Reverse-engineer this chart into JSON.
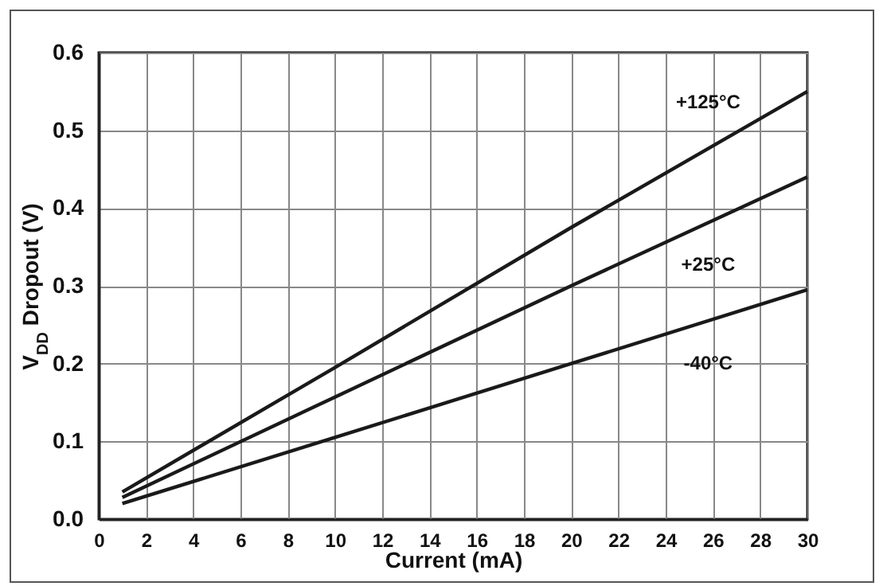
{
  "chart_data": {
    "type": "line",
    "xlabel": "Current (mA)",
    "ylabel": "V$_{DD}$ Dropout (V)",
    "xlim": [
      0,
      30
    ],
    "xticks": [
      0,
      2,
      4,
      6,
      8,
      10,
      12,
      14,
      16,
      18,
      20,
      22,
      24,
      26,
      28,
      30
    ],
    "ylim": [
      0,
      0.6
    ],
    "yticks": [
      {
        "value": 0,
        "label": "0.0"
      },
      0.1,
      0.2,
      0.3,
      0.4,
      0.5,
      0.6
    ],
    "grid": true,
    "legend": false,
    "marker": "none",
    "line_style": "solid",
    "x": [
      1,
      10,
      20,
      30
    ],
    "series": [
      {
        "name": "+125°C",
        "color": "#1a1a1a",
        "values": [
          0.035,
          0.195,
          0.375,
          0.55
        ]
      },
      {
        "name": "+25°C",
        "color": "#1a1a1a",
        "values": [
          0.028,
          0.157,
          0.3,
          0.44
        ]
      },
      {
        "name": "-40°C",
        "color": "#1a1a1a",
        "values": [
          0.02,
          0.105,
          0.2,
          0.295
        ]
      }
    ]
  }
}
